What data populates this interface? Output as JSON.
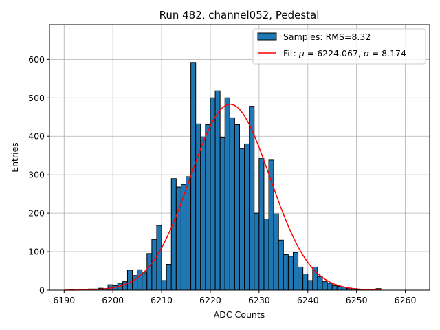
{
  "chart_data": {
    "type": "bar",
    "title": "Run 482, channel052, Pedestal",
    "xlabel": "ADC Counts",
    "ylabel": "Entries",
    "xlim": [
      6187,
      6265
    ],
    "ylim": [
      0,
      690
    ],
    "xticks": [
      6190,
      6200,
      6210,
      6220,
      6230,
      6240,
      6250,
      6260
    ],
    "yticks": [
      0,
      100,
      200,
      300,
      400,
      500,
      600
    ],
    "grid": true,
    "legend_position": "top-right",
    "bins": {
      "start": 6190,
      "width": 1,
      "values": [
        0,
        2,
        0,
        0,
        0,
        3,
        3,
        5,
        4,
        14,
        12,
        18,
        22,
        52,
        38,
        53,
        45,
        95,
        132,
        168,
        25,
        67,
        290,
        268,
        275,
        295,
        592,
        432,
        398,
        430,
        500,
        518,
        396,
        500,
        448,
        430,
        368,
        380,
        478,
        200,
        342,
        185,
        338,
        198,
        130,
        92,
        88,
        98,
        60,
        42,
        25,
        60,
        35,
        22,
        18,
        12,
        10,
        8,
        5,
        4,
        2,
        0,
        0,
        0,
        4
      ]
    },
    "series": [
      {
        "name": "Samples: RMS=8.32",
        "kind": "histogram",
        "color": "#1f77b4",
        "edgecolor": "#000000"
      },
      {
        "name": "Fit: μ = 6224.067, σ = 8.174",
        "kind": "gaussian_fit",
        "mu": 6224.067,
        "sigma": 8.174,
        "peak": 483,
        "x_range": [
          6190,
          6255
        ],
        "color": "#ff0000"
      }
    ],
    "legend": {
      "entries": [
        {
          "text": "Samples: RMS=8.32"
        },
        {
          "text_prefix": "Fit: ",
          "mu_symbol": "μ",
          "eq1": " = 6224.067, ",
          "sigma_symbol": "σ",
          "eq2": " = 8.174"
        }
      ]
    }
  }
}
